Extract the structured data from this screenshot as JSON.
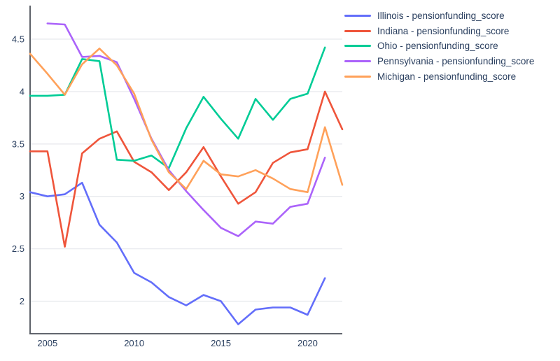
{
  "chart_data": {
    "type": "line",
    "title": "",
    "xlabel": "",
    "ylabel": "",
    "xlim": [
      2004,
      2022
    ],
    "ylim": [
      1.69,
      4.82
    ],
    "xticks": [
      2005,
      2010,
      2015,
      2020
    ],
    "yticks": [
      2,
      2.5,
      3,
      3.5,
      4,
      4.5
    ],
    "grid": "horizontal-only",
    "legend_position": "top-right-outside",
    "axis_color": "#4c5159",
    "grid_color": "#e8eaee",
    "tick_label_color": "#2a3f5f",
    "series": [
      {
        "name": "Illinois",
        "legend_label": "Illinois - pensionfunding_score",
        "color": "#636EFA",
        "x": [
          2004,
          2005,
          2006,
          2007,
          2008,
          2009,
          2010,
          2011,
          2012,
          2013,
          2014,
          2015,
          2016,
          2017,
          2018,
          2019,
          2020,
          2021
        ],
        "values": [
          3.04,
          3.0,
          3.02,
          3.13,
          2.73,
          2.56,
          2.27,
          2.18,
          2.04,
          1.96,
          2.06,
          2.0,
          1.78,
          1.92,
          1.94,
          1.94,
          1.87,
          2.22
        ]
      },
      {
        "name": "Indiana",
        "legend_label": "Indiana - pensionfunding_score",
        "color": "#EF553B",
        "x": [
          2004,
          2005,
          2006,
          2007,
          2008,
          2009,
          2010,
          2011,
          2012,
          2013,
          2014,
          2015,
          2016,
          2017,
          2018,
          2019,
          2020,
          2021,
          2022
        ],
        "values": [
          3.43,
          3.43,
          2.52,
          3.41,
          3.55,
          3.62,
          3.33,
          3.23,
          3.06,
          3.23,
          3.47,
          3.19,
          2.93,
          3.04,
          3.32,
          3.42,
          3.45,
          4.0,
          3.64
        ]
      },
      {
        "name": "Ohio",
        "legend_label": "Ohio - pensionfunding_score",
        "color": "#00CC96",
        "x": [
          2004,
          2005,
          2006,
          2007,
          2008,
          2009,
          2010,
          2011,
          2012,
          2013,
          2014,
          2015,
          2016,
          2017,
          2018,
          2019,
          2020,
          2021
        ],
        "values": [
          3.96,
          3.96,
          3.97,
          4.31,
          4.29,
          3.35,
          3.34,
          3.39,
          3.27,
          3.65,
          3.95,
          3.74,
          3.55,
          3.93,
          3.73,
          3.93,
          3.98,
          4.42
        ]
      },
      {
        "name": "Pennsylvania",
        "legend_label": "Pennsylvania - pensionfunding_score",
        "color": "#AB63FA",
        "x": [
          2005,
          2006,
          2007,
          2008,
          2009,
          2010,
          2011,
          2012,
          2013,
          2014,
          2015,
          2016,
          2017,
          2018,
          2019,
          2020,
          2021
        ],
        "values": [
          4.65,
          4.64,
          4.33,
          4.34,
          4.28,
          3.93,
          3.55,
          3.25,
          3.05,
          2.87,
          2.7,
          2.62,
          2.76,
          2.74,
          2.9,
          2.93,
          3.37
        ]
      },
      {
        "name": "Michigan",
        "legend_label": "Michigan - pensionfunding_score",
        "color": "#FFA15A",
        "x": [
          2004,
          2005,
          2006,
          2007,
          2008,
          2009,
          2010,
          2011,
          2012,
          2013,
          2014,
          2015,
          2016,
          2017,
          2018,
          2019,
          2020,
          2021,
          2022
        ],
        "values": [
          4.36,
          4.17,
          3.97,
          4.26,
          4.41,
          4.25,
          3.98,
          3.54,
          3.23,
          3.07,
          3.34,
          3.21,
          3.19,
          3.25,
          3.17,
          3.07,
          3.04,
          3.66,
          3.11
        ]
      }
    ]
  }
}
